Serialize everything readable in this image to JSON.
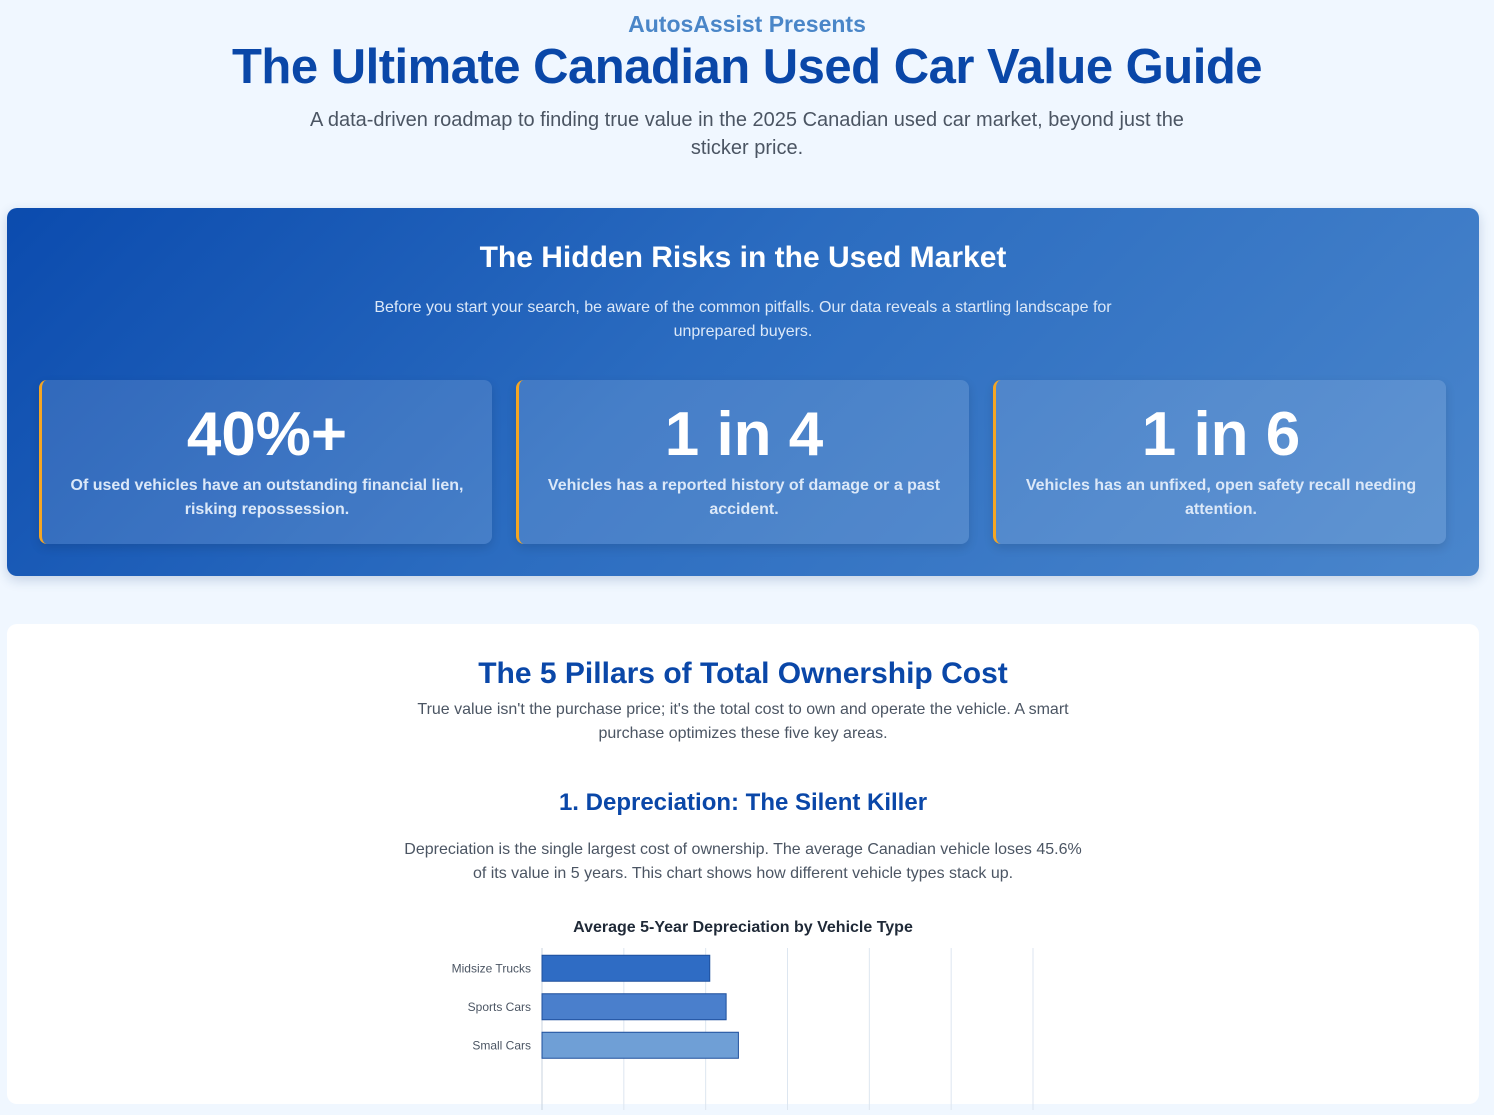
{
  "header": {
    "presents": "AutosAssist Presents",
    "title": "The Ultimate Canadian Used Car Value Guide",
    "subtitle": "A data-driven roadmap to finding true value in the 2025 Canadian used car market, beyond just the sticker price."
  },
  "risks": {
    "title": "The Hidden Risks in the Used Market",
    "description": "Before you start your search, be aware of the common pitfalls. Our data reveals a startling landscape for unprepared buyers.",
    "cards": [
      {
        "value": "40%+",
        "text": "Of used vehicles have an outstanding financial lien, risking repossession."
      },
      {
        "value": "1 in 4",
        "text": "Vehicles has a reported history of damage or a past accident."
      },
      {
        "value": "1 in 6",
        "text": "Vehicles has an unfixed, open safety recall needing attention."
      }
    ],
    "colors": {
      "accent_border": "#f5a623",
      "gradient_start": "#0b4bae",
      "gradient_end": "#4a86cc"
    }
  },
  "pillars": {
    "title": "The 5 Pillars of Total Ownership Cost",
    "description": "True value isn't the purchase price; it's the total cost to own and operate the vehicle. A smart purchase optimizes these five key areas.",
    "section1": {
      "title": "1. Depreciation: The Silent Killer",
      "description": "Depreciation is the single largest cost of ownership. The average Canadian vehicle loses 45.6% of its value in 5 years. This chart shows how different vehicle types stack up."
    }
  },
  "chart_data": {
    "type": "bar",
    "orientation": "horizontal",
    "title": "Average 5-Year Depreciation by Vehicle Type",
    "xlabel": "",
    "ylabel": "",
    "categories": [
      "Midsize Trucks",
      "Sports Cars",
      "Small Cars"
    ],
    "values": [
      20.5,
      22.5,
      24
    ],
    "xlim": [
      0,
      60
    ],
    "grid": true,
    "colors": [
      "#2f6cc4",
      "#4a7fcc",
      "#6f9fd6"
    ]
  }
}
